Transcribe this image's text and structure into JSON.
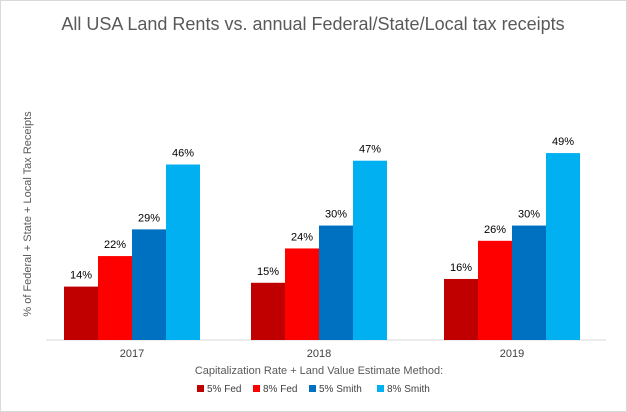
{
  "chart_data": {
    "type": "bar",
    "title": "All USA Land Rents vs. annual Federal/State/Local tax receipts",
    "xlabel": "Capitalization Rate + Land Value Estimate Method:",
    "ylabel": "% of Federal + State + Local Tax Receipts",
    "categories": [
      "2017",
      "2018",
      "2019"
    ],
    "series": [
      {
        "name": "5% Fed",
        "color": "#c00000",
        "values": [
          14,
          15,
          16
        ],
        "labels": [
          "14%",
          "15%",
          "16%"
        ]
      },
      {
        "name": "8% Fed",
        "color": "#ff0000",
        "values": [
          22,
          24,
          26
        ],
        "labels": [
          "22%",
          "24%",
          "26%"
        ]
      },
      {
        "name": "5% Smith",
        "color": "#0070c0",
        "values": [
          29,
          30,
          30
        ],
        "labels": [
          "29%",
          "30%",
          "30%"
        ]
      },
      {
        "name": "8% Smith",
        "color": "#00b0f0",
        "values": [
          46,
          47,
          49
        ],
        "labels": [
          "46%",
          "47%",
          "49%"
        ]
      }
    ],
    "ylim": [
      0,
      81
    ],
    "grid": false,
    "y_ticks_visible": false,
    "legend_position": "bottom"
  }
}
